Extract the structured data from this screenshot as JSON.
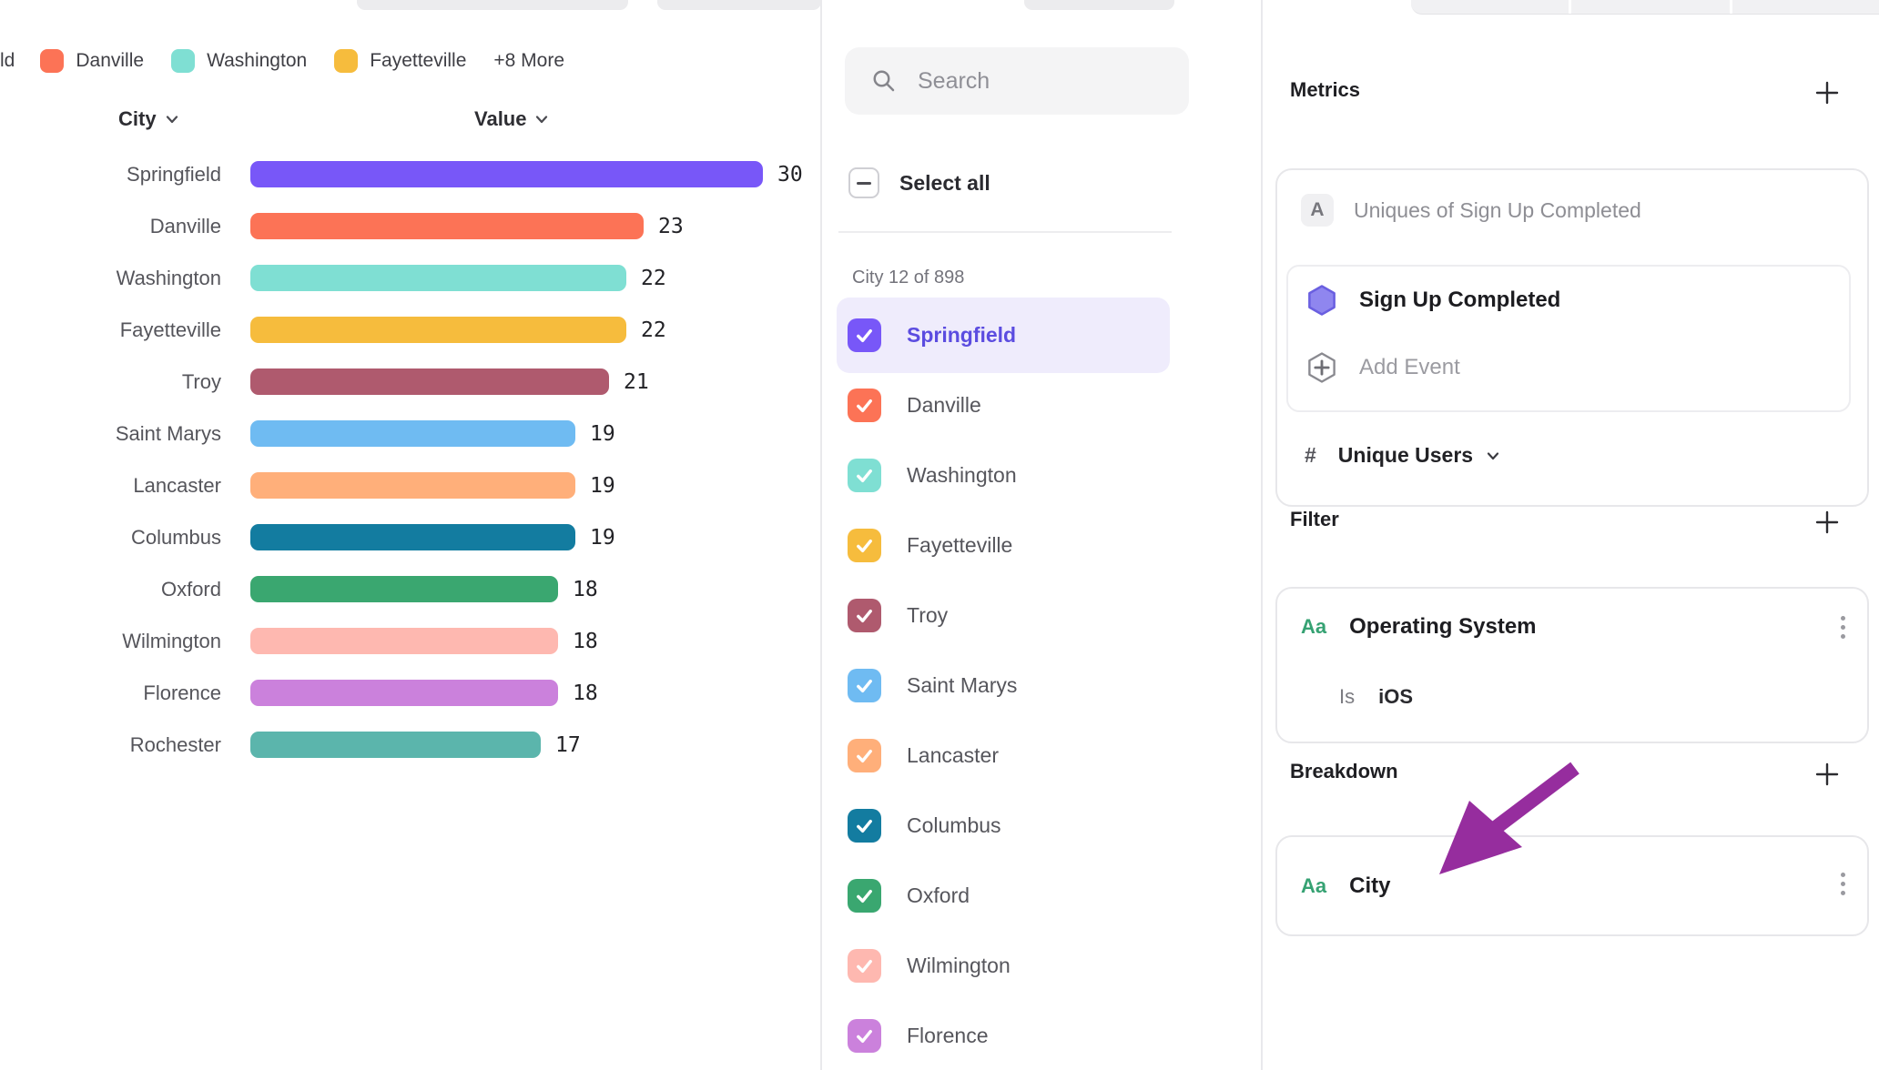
{
  "legend": {
    "truncated_label": "ld",
    "items": [
      {
        "label": "Danville",
        "color": "#FC7356"
      },
      {
        "label": "Washington",
        "color": "#7FDFD3"
      },
      {
        "label": "Fayetteville",
        "color": "#F6BC3D"
      }
    ],
    "more_label": "+8 More"
  },
  "chart_data": {
    "type": "bar",
    "orientation": "horizontal",
    "title": "",
    "column_headers": {
      "category": "City",
      "value": "Value"
    },
    "categories": [
      "Springfield",
      "Danville",
      "Washington",
      "Fayetteville",
      "Troy",
      "Saint Marys",
      "Lancaster",
      "Columbus",
      "Oxford",
      "Wilmington",
      "Florence",
      "Rochester"
    ],
    "values": [
      30,
      23,
      22,
      22,
      21,
      19,
      19,
      19,
      18,
      18,
      18,
      17
    ],
    "colors": [
      "#7857F8",
      "#FC7356",
      "#7FDFD3",
      "#F6BC3D",
      "#AF5A6E",
      "#6FBBF2",
      "#FFAF7A",
      "#137CA0",
      "#3AA770",
      "#FEB8B0",
      "#CB81DC",
      "#5BB5AC"
    ],
    "xlim": [
      0,
      30
    ],
    "grid": false,
    "legend_position": "top"
  },
  "list_panel": {
    "search_placeholder": "Search",
    "search_value": "",
    "select_all_label": "Select all",
    "count_label": "City 12 of 898",
    "items": [
      {
        "label": "Springfield",
        "color": "#7857F8",
        "checked": true,
        "selected": true
      },
      {
        "label": "Danville",
        "color": "#FC7356",
        "checked": true,
        "selected": false
      },
      {
        "label": "Washington",
        "color": "#7FDFD3",
        "checked": true,
        "selected": false
      },
      {
        "label": "Fayetteville",
        "color": "#F6BC3D",
        "checked": true,
        "selected": false
      },
      {
        "label": "Troy",
        "color": "#AF5A6E",
        "checked": true,
        "selected": false
      },
      {
        "label": "Saint Marys",
        "color": "#6FBBF2",
        "checked": true,
        "selected": false
      },
      {
        "label": "Lancaster",
        "color": "#FFAF7A",
        "checked": true,
        "selected": false
      },
      {
        "label": "Columbus",
        "color": "#137CA0",
        "checked": true,
        "selected": false
      },
      {
        "label": "Oxford",
        "color": "#3AA770",
        "checked": true,
        "selected": false
      },
      {
        "label": "Wilmington",
        "color": "#FEB8B0",
        "checked": true,
        "selected": false
      },
      {
        "label": "Florence",
        "color": "#CB81DC",
        "checked": true,
        "selected": false
      }
    ]
  },
  "inspector": {
    "metrics": {
      "title": "Metrics",
      "metric_letter": "A",
      "metric_name": "Uniques of Sign Up Completed",
      "event_name": "Sign Up Completed",
      "add_event_label": "Add Event",
      "measure_prefix": "#",
      "measure_label": "Unique Users"
    },
    "filter": {
      "title": "Filter",
      "type_badge": "Aa",
      "property": "Operating System",
      "operator": "Is",
      "value": "iOS"
    },
    "breakdown": {
      "title": "Breakdown",
      "type_badge": "Aa",
      "property": "City"
    }
  },
  "colors": {
    "accent": "#7857F8",
    "selected_row_bg": "#EFECFC",
    "selected_row_text": "#5B4CE0",
    "annotation_arrow": "#962D9E",
    "event_hexagon_fill": "#8F86EF",
    "event_hexagon_stroke": "#6A5FE0"
  }
}
